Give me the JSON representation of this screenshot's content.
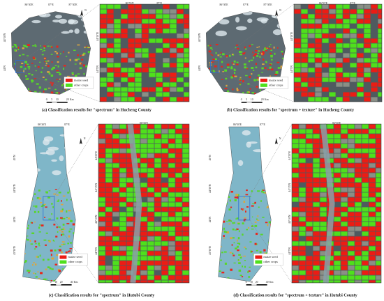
{
  "panels": [
    {
      "caption": "(a) Classification results for \"spectrum\" in Hucheng County",
      "legend": [
        "maize seed",
        "other crops"
      ],
      "overview_top": [
        "86°30'E",
        "87°E",
        "87°30'E"
      ],
      "overview_left": [
        "44°30'N",
        "44°N"
      ],
      "zoom_top": [
        "86°55'E",
        "87°E"
      ],
      "zoom_left": [
        "44°10'N",
        "44°5'N"
      ],
      "scale": [
        "0",
        "5",
        "10",
        "20",
        "Km"
      ],
      "north": "N"
    },
    {
      "caption": "(b) Classification results for \"spectrum + texture\" in Hucheng County",
      "legend": [
        "maize seed",
        "other crops"
      ],
      "overview_top": [
        "86°30'E",
        "87°E",
        "87°30'E"
      ],
      "overview_left": [
        "44°30'N",
        "44°N"
      ],
      "zoom_top": [
        "86°55'E",
        "87°E"
      ],
      "zoom_left": [
        "44°10'N",
        "44°5'N"
      ],
      "scale": [
        "0",
        "5",
        "10",
        "20",
        "Km"
      ],
      "north": "N"
    },
    {
      "caption": "(c) Classification results for \"spectrum\" in Hutubi County",
      "legend": [
        "maize seed",
        "other crops"
      ],
      "overview_top": [
        "86°30'E",
        "87°E"
      ],
      "overview_left": [
        "45°N",
        "44°30'N",
        "44°N",
        "43°30'N"
      ],
      "zoom_top": [
        "86°50'E"
      ],
      "zoom_left": [
        "44°20'N",
        "44°15'N",
        "44°10'N",
        "44°5'N"
      ],
      "scale": [
        "0",
        "10",
        "20",
        "40",
        "Km"
      ],
      "north": "N"
    },
    {
      "caption": "(d) Classification results for \"spectrum + texture\" in Hutubi County",
      "legend": [
        "maize seed",
        "other crops"
      ],
      "overview_top": [
        "86°30'E",
        "87°E"
      ],
      "overview_left": [
        "45°N",
        "44°30'N",
        "44°N",
        "43°30'N"
      ],
      "zoom_top": [
        "86°50'E"
      ],
      "zoom_left": [
        "44°20'N",
        "44°15'N",
        "44°10'N",
        "44°5'N"
      ],
      "scale": [
        "0",
        "10",
        "20",
        "40",
        "Km"
      ],
      "north": "N"
    }
  ]
}
